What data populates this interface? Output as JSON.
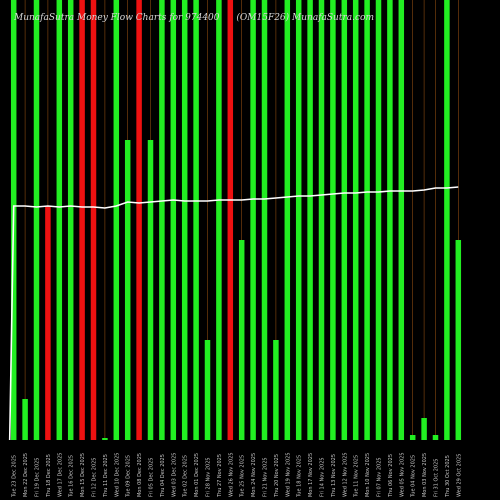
{
  "header": {
    "title_left": "MunafaSutra Money Flow Charts for 974400",
    "title_right": "(OM15F26) MunafaSutra.com"
  },
  "chart_data": {
    "type": "bar",
    "title": "MunafaSutra Money Flow Charts for 974400 (OM15F26) MunafaSutra.com",
    "ylim": [
      0,
      440
    ],
    "categories": [
      "Tue 23 Dec 2025",
      "Mon 22 Dec 2025",
      "Fri 19 Dec 2025",
      "Thu 18 Dec 2025",
      "Wed 17 Dec 2025",
      "Tue 16 Dec 2025",
      "Mon 15 Dec 2025",
      "Fri 12 Dec 2025",
      "Thu 11 Dec 2025",
      "Wed 10 Dec 2025",
      "Tue 09 Dec 2025",
      "Mon 08 Dec 2025",
      "Fri 05 Dec 2025",
      "Thu 04 Dec 2025",
      "Wed 03 Dec 2025",
      "Tue 02 Dec 2025",
      "Mon 01 Dec 2025",
      "Fri 28 Nov 2025",
      "Thu 27 Nov 2025",
      "Wed 26 Nov 2025",
      "Tue 25 Nov 2025",
      "Mon 24 Nov 2025",
      "Fri 21 Nov 2025",
      "Thu 20 Nov 2025",
      "Wed 19 Nov 2025",
      "Tue 18 Nov 2025",
      "Mon 17 Nov 2025",
      "Fri 14 Nov 2025",
      "Thu 13 Nov 2025",
      "Wed 12 Nov 2025",
      "Tue 11 Nov 2025",
      "Mon 10 Nov 2025",
      "Fri 07 Nov 2025",
      "Thu 06 Nov 2025",
      "Wed 05 Nov 2025",
      "Tue 04 Nov 2025",
      "Mon 03 Nov 2025",
      "Fri 31 Oct 2025",
      "Thu 30 Oct 2025",
      "Wed 29 Oct 2025"
    ],
    "series": [
      {
        "values": [
          440,
          41,
          440,
          234,
          440,
          440,
          440,
          440,
          2,
          440,
          300,
          440,
          300,
          440,
          440,
          440,
          440,
          100,
          440,
          440,
          200,
          440,
          440,
          100,
          440,
          440,
          440,
          440,
          440,
          440,
          440,
          440,
          440,
          440,
          440,
          5,
          22,
          5,
          440,
          200
        ],
        "colors": [
          "green",
          "green",
          "green",
          "red",
          "green",
          "green",
          "red",
          "red",
          "green",
          "green",
          "green",
          "red",
          "green",
          "green",
          "green",
          "green",
          "green",
          "green",
          "green",
          "red",
          "green",
          "green",
          "green",
          "green",
          "green",
          "green",
          "green",
          "green",
          "green",
          "green",
          "green",
          "green",
          "green",
          "green",
          "green",
          "green",
          "green",
          "green",
          "green",
          "green"
        ]
      },
      {
        "type": "line",
        "values": [
          234,
          234,
          233,
          234,
          233,
          234,
          233,
          233,
          232,
          234,
          238,
          237,
          238,
          239,
          240,
          239,
          239,
          239,
          240,
          240,
          240,
          241,
          241,
          242,
          243,
          244,
          244,
          245,
          246,
          247,
          247,
          248,
          248,
          249,
          249,
          249,
          250,
          252,
          252,
          253
        ]
      }
    ],
    "colors": {
      "green": "#22ee22",
      "red": "#ee1111",
      "line": "#ffffff",
      "grid": "#8a4a10",
      "background": "#000000"
    }
  }
}
